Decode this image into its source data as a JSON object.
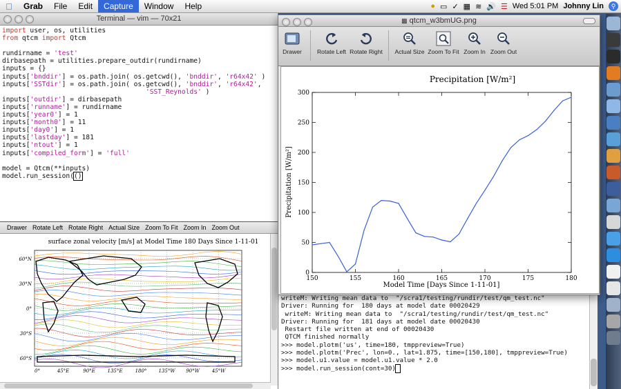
{
  "menubar": {
    "app": "Grab",
    "items": [
      "File",
      "Edit",
      "Capture",
      "Window",
      "Help"
    ],
    "active_item": "Capture",
    "clock": "Wed 5:01 PM",
    "user": "Johnny Lin"
  },
  "terminal": {
    "title": "Terminal — vim — 70x21",
    "lines": [
      [
        [
          "kw",
          "import"
        ],
        [
          "",
          " user, os, utilities"
        ]
      ],
      [
        [
          "kw",
          "from"
        ],
        [
          "",
          " qtcm "
        ],
        [
          "kw",
          "import"
        ],
        [
          "",
          " Qtcm"
        ]
      ],
      [],
      [
        [
          "",
          "rundirname = "
        ],
        [
          "st",
          "'test'"
        ]
      ],
      [
        [
          "",
          "dirbasepath = utilities.prepare_outdir(rundirname)"
        ]
      ],
      [
        [
          "",
          "inputs = {}"
        ]
      ],
      [
        [
          "",
          "inputs["
        ],
        [
          "st",
          "'bnddir'"
        ],
        [
          "",
          "] = os.path.join( os.getcwd(), "
        ],
        [
          "st",
          "'bnddir'"
        ],
        [
          "",
          ", "
        ],
        [
          "st",
          "'r64x42'"
        ],
        [
          "",
          " )"
        ]
      ],
      [
        [
          "",
          "inputs["
        ],
        [
          "st",
          "'SSTdir'"
        ],
        [
          "",
          "] = os.path.join( os.getcwd(), "
        ],
        [
          "st",
          "'bnddir'"
        ],
        [
          "",
          ", "
        ],
        [
          "st",
          "'r64x42'"
        ],
        [
          "",
          ","
        ]
      ],
      [
        [
          "",
          "                                    "
        ],
        [
          "st",
          "'SST_Reynolds'"
        ],
        [
          "",
          " )"
        ]
      ],
      [
        [
          "",
          "inputs["
        ],
        [
          "st",
          "'outdir'"
        ],
        [
          "",
          "] = dirbasepath"
        ]
      ],
      [
        [
          "",
          "inputs["
        ],
        [
          "st",
          "'runname'"
        ],
        [
          "",
          "] = rundirname"
        ]
      ],
      [
        [
          "",
          "inputs["
        ],
        [
          "st",
          "'year0'"
        ],
        [
          "",
          "] = 1"
        ]
      ],
      [
        [
          "",
          "inputs["
        ],
        [
          "st",
          "'month0'"
        ],
        [
          "",
          "] = 11"
        ]
      ],
      [
        [
          "",
          "inputs["
        ],
        [
          "st",
          "'day0'"
        ],
        [
          "",
          "] = 1"
        ]
      ],
      [
        [
          "",
          "inputs["
        ],
        [
          "st",
          "'lastday'"
        ],
        [
          "",
          "] = 181"
        ]
      ],
      [
        [
          "",
          "inputs["
        ],
        [
          "st",
          "'ntout'"
        ],
        [
          "",
          "] = 1"
        ]
      ],
      [
        [
          "",
          "inputs["
        ],
        [
          "st",
          "'compiled_form'"
        ],
        [
          "",
          "] = "
        ],
        [
          "st",
          "'full'"
        ]
      ],
      [],
      [
        [
          "",
          "model = Qtcm(**inputs)"
        ]
      ],
      [
        [
          "",
          "model.run_session("
        ],
        [
          "cur",
          "()"
        ]
      ]
    ]
  },
  "back_preview": {
    "toolbar": [
      "Drawer",
      "Rotate Left",
      "Rotate Right",
      "Actual Size",
      "Zoom To Fit",
      "Zoom In",
      "Zoom Out"
    ],
    "plot_title": "surface zonal velocity [m/s] at Model Time 180 Days Since 1-11-01",
    "lat_labels": [
      "60°N",
      "30°N",
      "0°",
      "30°S",
      "60°S"
    ],
    "lon_labels": [
      "0°",
      "45°E",
      "90°E",
      "135°E",
      "180°",
      "135°W",
      "90°W",
      "45°W"
    ]
  },
  "preview": {
    "title": "qtcm_w3bmUG.png",
    "toolbar": [
      {
        "label": "Drawer",
        "icon": "drawer-icon"
      },
      {
        "label": "Rotate Left",
        "icon": "rotate-left-icon"
      },
      {
        "label": "Rotate Right",
        "icon": "rotate-right-icon"
      },
      {
        "label": "Actual Size",
        "icon": "actual-size-icon"
      },
      {
        "label": "Zoom To Fit",
        "icon": "zoom-to-fit-icon"
      },
      {
        "label": "Zoom In",
        "icon": "zoom-in-icon"
      },
      {
        "label": "Zoom Out",
        "icon": "zoom-out-icon"
      }
    ]
  },
  "console": {
    "lines": [
      "writeM: Writing mean data to  \"/scra1/testing/rundir/test/qm_test.nc\"",
      "Driver: Running for  180 days at model date 00020429",
      " writeM: Writing mean data to  \"/scra1/testing/rundir/test/qm_test.nc\"",
      "Driver: Running for  181 days at model date 00020430",
      " Restart file written at end of 00020430",
      " QTCM finished normally",
      ">>> model.plotm('us', time=180, tmppreview=True)",
      ">>> model.plotm('Prec', lon=0., lat=1.875, time=[150,180], tmppreview=True)",
      ">>> model.u1.value = model.u1.value * 2.0",
      ">>> model.run_session(cont=30)"
    ]
  },
  "chart_data": {
    "type": "line",
    "title": "Precipitation [W/m²]",
    "xlabel": "Model Time [Days Since 1-11-01]",
    "ylabel": "Precipitation [W/m²]",
    "xlim": [
      150,
      180
    ],
    "ylim": [
      0,
      300
    ],
    "xticks": [
      150,
      155,
      160,
      165,
      170,
      175,
      180
    ],
    "yticks": [
      0,
      50,
      100,
      150,
      200,
      250,
      300
    ],
    "grid": false,
    "color": "#3a5fd9",
    "x": [
      150,
      151,
      152,
      153,
      154,
      155,
      156,
      157,
      158,
      159,
      160,
      161,
      162,
      163,
      164,
      165,
      166,
      167,
      168,
      169,
      170,
      171,
      172,
      173,
      174,
      175,
      176,
      177,
      178,
      179,
      180
    ],
    "y": [
      46,
      48,
      50,
      27,
      1,
      14,
      70,
      109,
      120,
      119,
      115,
      90,
      66,
      60,
      59,
      54,
      51,
      64,
      90,
      115,
      137,
      160,
      186,
      208,
      221,
      228,
      238,
      252,
      270,
      286,
      292
    ]
  }
}
